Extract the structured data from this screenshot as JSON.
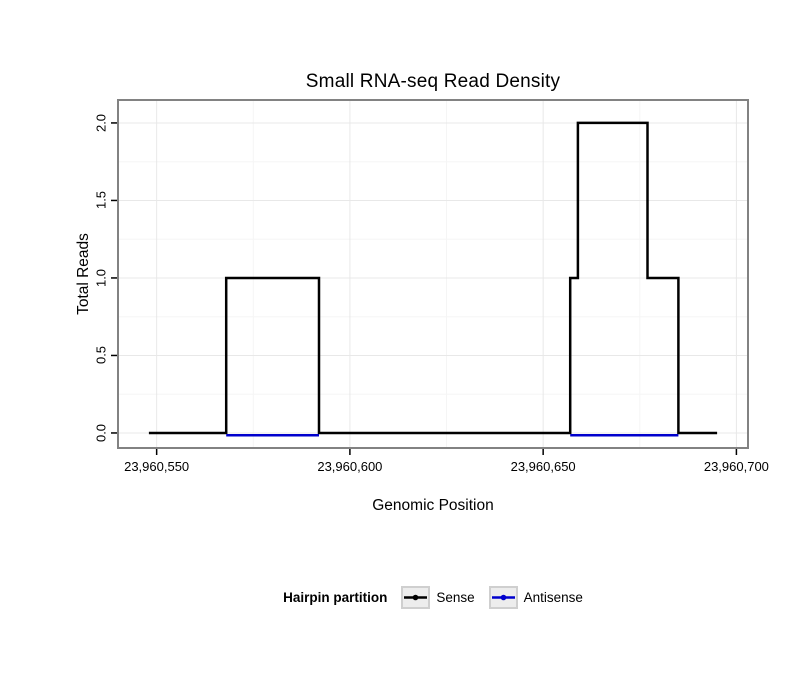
{
  "title": "Small RNA-seq Read Density",
  "axes": {
    "x_label": "Genomic Position",
    "y_label": "Total Reads"
  },
  "legend": {
    "title": "Hairpin partition",
    "items": [
      {
        "label": "Sense",
        "color": "#000000"
      },
      {
        "label": "Antisense",
        "color": "#0000cd"
      }
    ]
  },
  "colors": {
    "sense": "#000000",
    "antisense": "#0000cd",
    "panel_border": "#828282",
    "grid_major": "#e8e8e8",
    "grid_minor": "#f5f5f5"
  },
  "chart_data": {
    "type": "line",
    "title": "Small RNA-seq Read Density",
    "xlabel": "Genomic Position",
    "ylabel": "Total Reads",
    "xlim": [
      23960540,
      23960703
    ],
    "ylim": [
      -0.097,
      2.148
    ],
    "x_ticks": [
      23960550,
      23960600,
      23960650,
      23960700
    ],
    "x_tick_labels": [
      "23,960,550",
      "23,960,600",
      "23,960,650",
      "23,960,700"
    ],
    "y_ticks": [
      0,
      0.5,
      1,
      1.5,
      2
    ],
    "y_tick_labels": [
      "0.0",
      "0.5",
      "1.0",
      "1.5",
      "2.0"
    ],
    "grid": true,
    "legend_position": "bottom",
    "series": [
      {
        "name": "Sense",
        "color": "#000000",
        "segments": [
          [
            [
              23960548,
              0
            ],
            [
              23960568,
              0
            ],
            [
              23960568,
              1
            ],
            [
              23960592,
              1
            ],
            [
              23960592,
              0
            ],
            [
              23960657,
              0
            ],
            [
              23960657,
              1
            ],
            [
              23960659,
              1
            ],
            [
              23960659,
              2
            ],
            [
              23960677,
              2
            ],
            [
              23960677,
              1
            ],
            [
              23960685,
              1
            ],
            [
              23960685,
              0
            ],
            [
              23960695,
              0
            ]
          ]
        ]
      },
      {
        "name": "Antisense",
        "color": "#0000cd",
        "segments": [
          [
            [
              23960568,
              0
            ],
            [
              23960592,
              0
            ]
          ],
          [
            [
              23960657,
              0
            ],
            [
              23960685,
              0
            ]
          ]
        ]
      }
    ]
  }
}
